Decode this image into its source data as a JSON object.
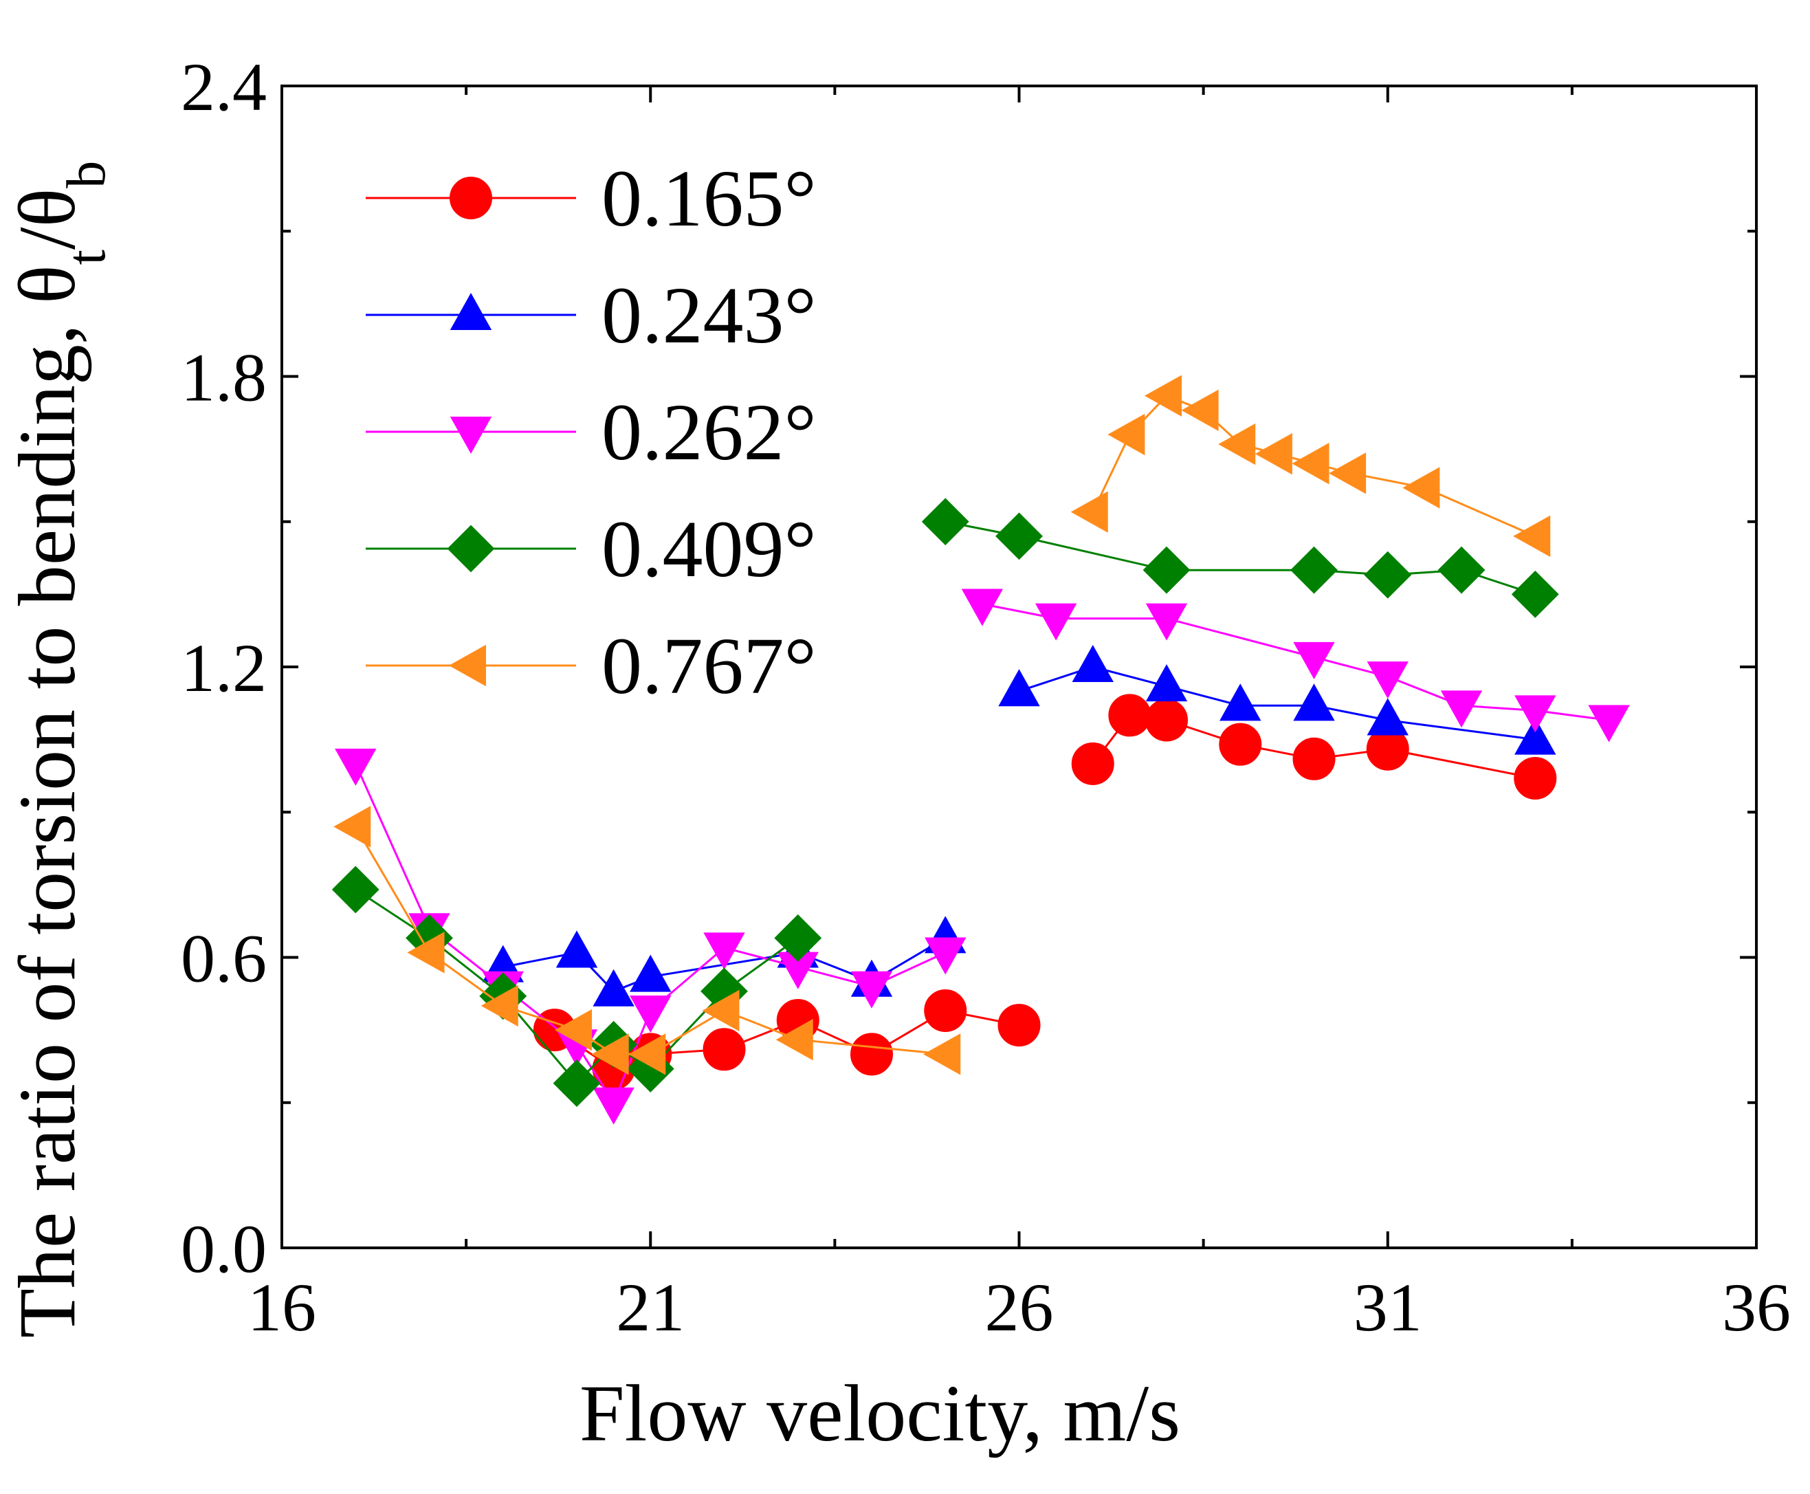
{
  "chart_data": {
    "type": "line",
    "title": "",
    "xlabel": "Flow velocity, m/s",
    "ylabel": {
      "prefix": "The ratio of torsion to bending, ",
      "theta": "θ",
      "sub_t": "t",
      "slash": "/",
      "sub_b": "b"
    },
    "xlim": [
      16,
      36
    ],
    "ylim": [
      0.0,
      2.4
    ],
    "x_ticks": [
      16,
      21,
      26,
      31,
      36
    ],
    "x_tick_labels": [
      "16",
      "21",
      "26",
      "31",
      "36"
    ],
    "y_ticks": [
      0.0,
      0.6,
      1.2,
      1.8,
      2.4
    ],
    "y_tick_labels": [
      "0.0",
      "0.6",
      "1.2",
      "1.8",
      "2.4"
    ],
    "x_minor_step": 2.5,
    "y_minor_step": 0.3,
    "legend_position": "top-left",
    "series": [
      {
        "name": "0.165°",
        "color": "#ff0000",
        "marker": "circle",
        "segments": [
          {
            "x": [
              19.7,
              20.5,
              21.0,
              22.0,
              23.0,
              24.0,
              25.0,
              26.0
            ],
            "y": [
              0.45,
              0.37,
              0.4,
              0.41,
              0.47,
              0.4,
              0.49,
              0.46
            ]
          },
          {
            "x": [
              27.0,
              27.5,
              28.0,
              29.0,
              30.0,
              31.0,
              33.0
            ],
            "y": [
              1.0,
              1.1,
              1.09,
              1.04,
              1.01,
              1.03,
              0.97
            ]
          }
        ]
      },
      {
        "name": "0.243°",
        "color": "#0000ff",
        "marker": "triangle-up",
        "segments": [
          {
            "x": [
              19.0,
              20.0,
              20.5,
              21.0,
              23.0,
              24.0,
              25.0
            ],
            "y": [
              0.58,
              0.61,
              0.53,
              0.56,
              0.61,
              0.55,
              0.64
            ]
          },
          {
            "x": [
              26.0,
              27.0,
              28.0,
              29.0,
              30.0,
              31.0,
              33.0
            ],
            "y": [
              1.15,
              1.2,
              1.16,
              1.12,
              1.12,
              1.09,
              1.05
            ]
          }
        ]
      },
      {
        "name": "0.262°",
        "color": "#ff00ff",
        "marker": "triangle-down",
        "segments": [
          {
            "x": [
              17.0,
              18.0,
              19.0,
              20.0,
              20.5,
              21.0,
              22.0,
              23.0,
              24.0,
              25.0
            ],
            "y": [
              1.0,
              0.66,
              0.54,
              0.42,
              0.3,
              0.49,
              0.62,
              0.58,
              0.54,
              0.61
            ]
          },
          {
            "x": [
              25.5,
              26.5,
              28.0,
              30.0,
              31.0,
              32.0,
              33.0,
              34.0
            ],
            "y": [
              1.33,
              1.3,
              1.3,
              1.22,
              1.18,
              1.12,
              1.11,
              1.09
            ]
          }
        ]
      },
      {
        "name": "0.409°",
        "color": "#008000",
        "marker": "diamond",
        "segments": [
          {
            "x": [
              17.0,
              18.0,
              19.0,
              20.0,
              20.5,
              21.0,
              22.0,
              23.0
            ],
            "y": [
              0.74,
              0.64,
              0.52,
              0.34,
              0.42,
              0.37,
              0.53,
              0.64
            ]
          },
          {
            "x": [
              25.0,
              26.0,
              28.0,
              30.0,
              31.0,
              32.0,
              33.0
            ],
            "y": [
              1.5,
              1.47,
              1.4,
              1.4,
              1.39,
              1.4,
              1.35
            ]
          }
        ]
      },
      {
        "name": "0.767°",
        "color": "#ff8c1a",
        "marker": "triangle-left",
        "segments": [
          {
            "x": [
              17.0,
              18.0,
              19.0,
              20.0,
              20.5,
              21.0,
              22.0,
              23.0,
              25.0
            ],
            "y": [
              0.87,
              0.61,
              0.5,
              0.45,
              0.4,
              0.4,
              0.49,
              0.43,
              0.4
            ]
          },
          {
            "x": [
              27.0,
              27.5,
              28.0,
              28.5,
              29.0,
              29.5,
              30.0,
              30.5,
              31.5,
              33.0
            ],
            "y": [
              1.52,
              1.68,
              1.76,
              1.73,
              1.66,
              1.64,
              1.62,
              1.6,
              1.57,
              1.47
            ]
          }
        ]
      }
    ]
  }
}
